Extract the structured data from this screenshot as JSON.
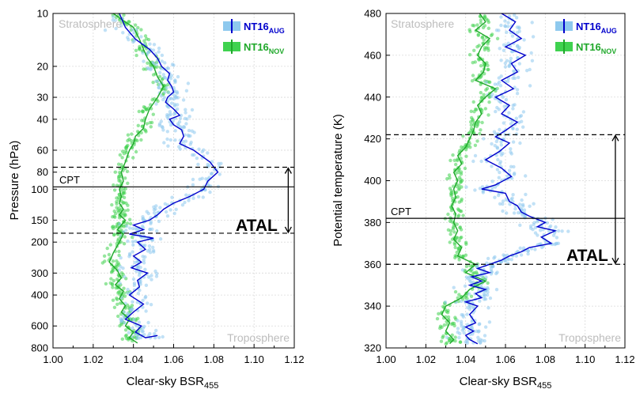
{
  "colors": {
    "aug_line": "#0000cc",
    "aug_points": "#8ec9ee",
    "nov_line": "#1fa82a",
    "nov_points": "#3fd24f",
    "atal_dashes": "#000000",
    "cpt_line": "#000000",
    "region_label": "#bdbdbd",
    "grid": "#d9d9d9"
  },
  "legend": {
    "aug": {
      "main": "NT16",
      "sub": "AUG"
    },
    "nov": {
      "main": "NT16",
      "sub": "NOV"
    }
  },
  "chart_data": [
    {
      "type": "scatter",
      "xlabel": {
        "main": "Clear-sky BSR",
        "sub": "455"
      },
      "ylabel": "Pressure (hPa)",
      "xlim": [
        1.0,
        1.12
      ],
      "ylim": [
        800,
        10
      ],
      "yscale": "log",
      "grid": true,
      "legend_position": "top-right",
      "xticks": [
        "1.00",
        "1.02",
        "1.04",
        "1.06",
        "1.08",
        "1.10",
        "1.12"
      ],
      "yticks": [
        10,
        20,
        30,
        40,
        60,
        80,
        100,
        150,
        200,
        300,
        400,
        600,
        800
      ],
      "annotations": {
        "top_region": "Stratosphere",
        "bottom_region": "Troposphere",
        "cpt_label": "CPT",
        "atal_label": "ATAL"
      },
      "cpt_level": 97,
      "atal_bounds": [
        75,
        178
      ],
      "series": [
        {
          "name": "NT16AUG",
          "color": "#0000cc",
          "x": [
            1.033,
            1.036,
            1.041,
            1.048,
            1.052,
            1.054,
            1.058,
            1.057,
            1.059,
            1.06,
            1.057,
            1.056,
            1.06,
            1.063,
            1.058,
            1.06,
            1.064,
            1.065,
            1.063,
            1.07,
            1.078,
            1.082,
            1.077,
            1.075,
            1.068,
            1.06,
            1.055,
            1.052,
            1.048,
            1.04,
            1.045,
            1.038,
            1.05,
            1.042,
            1.046,
            1.04,
            1.044,
            1.039,
            1.047,
            1.042,
            1.043,
            1.038,
            1.045,
            1.04,
            1.036,
            1.044,
            1.041,
            1.046,
            1.052
          ],
          "y": [
            10,
            12,
            14,
            16,
            18,
            20,
            22,
            24,
            26,
            28,
            30,
            32,
            35,
            38,
            40,
            43,
            46,
            50,
            55,
            60,
            70,
            80,
            90,
            100,
            110,
            120,
            130,
            140,
            150,
            160,
            170,
            180,
            190,
            200,
            220,
            240,
            260,
            280,
            300,
            330,
            360,
            400,
            450,
            500,
            550,
            600,
            650,
            700,
            680
          ]
        },
        {
          "name": "NT16NOV",
          "color": "#1fa82a",
          "x": [
            1.03,
            1.035,
            1.04,
            1.043,
            1.045,
            1.047,
            1.05,
            1.052,
            1.055,
            1.052,
            1.048,
            1.046,
            1.045,
            1.041,
            1.04,
            1.038,
            1.036,
            1.034,
            1.035,
            1.033,
            1.034,
            1.033,
            1.035,
            1.033,
            1.036,
            1.034,
            1.032,
            1.035,
            1.033,
            1.03,
            1.028,
            1.032,
            1.034,
            1.031,
            1.035,
            1.033,
            1.036,
            1.034,
            1.038,
            1.036,
            1.04,
            1.038,
            1.042
          ],
          "y": [
            10,
            11,
            12,
            14,
            16,
            18,
            20,
            23,
            26,
            30,
            35,
            40,
            45,
            50,
            55,
            60,
            70,
            80,
            90,
            100,
            110,
            120,
            130,
            140,
            150,
            160,
            170,
            180,
            200,
            230,
            260,
            290,
            320,
            350,
            380,
            420,
            460,
            500,
            550,
            600,
            650,
            700,
            750
          ]
        }
      ]
    },
    {
      "type": "scatter",
      "xlabel": {
        "main": "Clear-sky BSR",
        "sub": "455"
      },
      "ylabel": "Potential temperature (K)",
      "xlim": [
        1.0,
        1.12
      ],
      "ylim": [
        320,
        480
      ],
      "grid": true,
      "legend_position": "top-right",
      "xticks": [
        "1.00",
        "1.02",
        "1.04",
        "1.06",
        "1.08",
        "1.10",
        "1.12"
      ],
      "yticks": [
        320,
        340,
        360,
        380,
        400,
        420,
        440,
        460,
        480
      ],
      "annotations": {
        "top_region": "Stratosphere",
        "bottom_region": "Troposphere",
        "cpt_label": "CPT",
        "atal_label": "ATAL"
      },
      "cpt_level": 382,
      "atal_bounds": [
        360,
        422
      ],
      "series": [
        {
          "name": "NT16AUG",
          "color": "#0000cc",
          "x": [
            1.058,
            1.065,
            1.062,
            1.068,
            1.06,
            1.07,
            1.063,
            1.066,
            1.058,
            1.064,
            1.055,
            1.062,
            1.058,
            1.066,
            1.06,
            1.055,
            1.062,
            1.057,
            1.05,
            1.058,
            1.063,
            1.055,
            1.048,
            1.06,
            1.062,
            1.066,
            1.068,
            1.072,
            1.08,
            1.076,
            1.085,
            1.078,
            1.083,
            1.072,
            1.068,
            1.062,
            1.058,
            1.052,
            1.046,
            1.052,
            1.043,
            1.048,
            1.042,
            1.05,
            1.045,
            1.048,
            1.04,
            1.046,
            1.042,
            1.045,
            1.04,
            1.044,
            1.04,
            1.042,
            1.046
          ],
          "y": [
            480,
            476,
            472,
            468,
            464,
            460,
            456,
            452,
            448,
            444,
            440,
            436,
            432,
            428,
            424,
            421,
            418,
            414,
            410,
            406,
            402,
            398,
            396,
            394,
            390,
            388,
            385,
            383,
            380,
            378,
            376,
            373,
            370,
            368,
            366,
            364,
            362,
            360,
            358,
            356,
            354,
            352,
            350,
            348,
            346,
            344,
            342,
            340,
            336,
            332,
            330,
            328,
            326,
            324,
            322
          ]
        },
        {
          "name": "NT16NOV",
          "color": "#1fa82a",
          "x": [
            1.047,
            1.05,
            1.045,
            1.052,
            1.048,
            1.046,
            1.05,
            1.049,
            1.045,
            1.055,
            1.05,
            1.046,
            1.048,
            1.045,
            1.044,
            1.042,
            1.04,
            1.036,
            1.038,
            1.034,
            1.036,
            1.034,
            1.035,
            1.033,
            1.035,
            1.034,
            1.036,
            1.034,
            1.038,
            1.036,
            1.045,
            1.04,
            1.05,
            1.042,
            1.038,
            1.03,
            1.028,
            1.032,
            1.03,
            1.034,
            1.032
          ],
          "y": [
            480,
            476,
            472,
            468,
            464,
            460,
            456,
            452,
            448,
            444,
            440,
            436,
            432,
            428,
            424,
            420,
            416,
            412,
            408,
            404,
            400,
            396,
            392,
            388,
            384,
            380,
            376,
            372,
            368,
            364,
            360,
            356,
            352,
            348,
            344,
            340,
            336,
            332,
            328,
            324,
            322
          ]
        }
      ]
    }
  ]
}
